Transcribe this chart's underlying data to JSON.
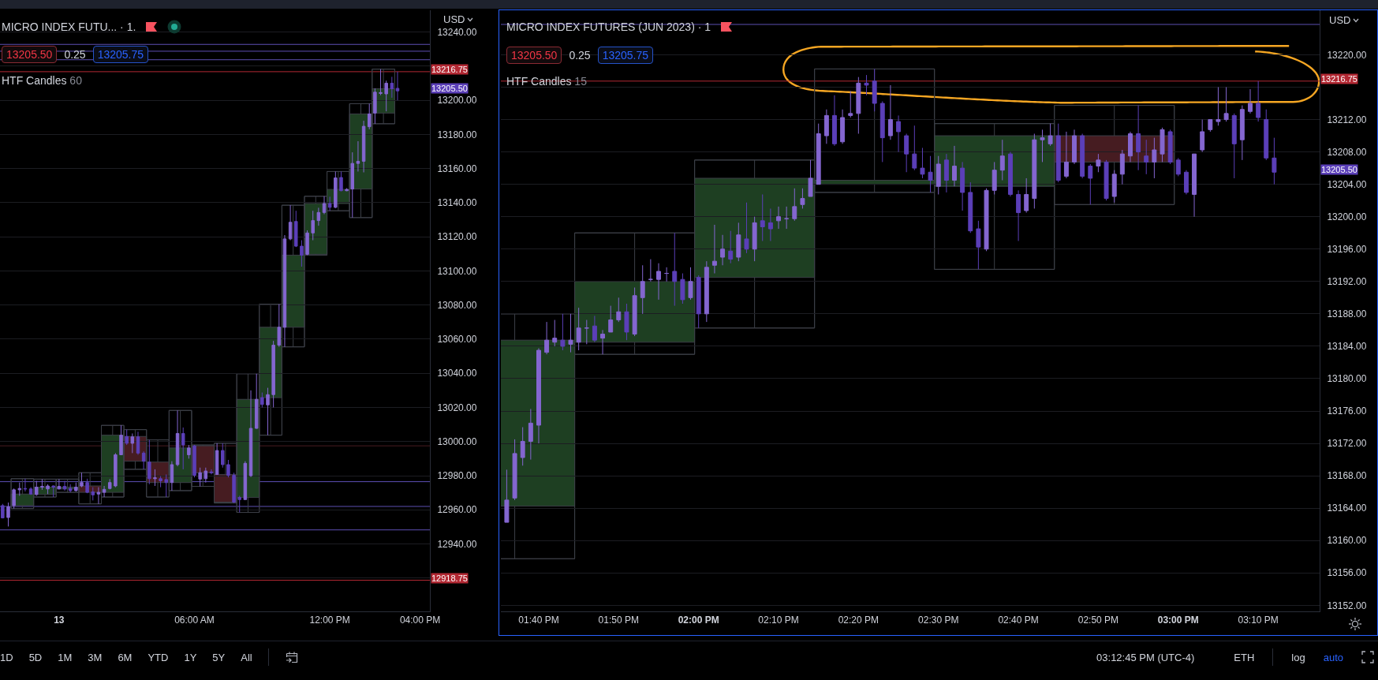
{
  "chart_data": [
    {
      "type": "candlestick",
      "title": "MICRO INDEX FUTU... · 1.",
      "series": [
        {
          "type": "candlestick",
          "colors": [
            "#5b3fb8",
            "#8466d0",
            "#8466d0",
            "#8466d0",
            "#5b3fb8",
            "#5b3fb8",
            "#8466d0",
            "#8466d0",
            "#8466d0",
            "#5b3fb8",
            "#8466d0",
            "#5b3fb8",
            "#5b3fb8",
            "#8466d0",
            "#8466d0",
            "#5b3fb8",
            "#5b3fb8",
            "#8466d0",
            "#8466d0",
            "#8466d0",
            "#8466d0",
            "#8466d0",
            "#5b3fb8",
            "#8466d0",
            "#5b3fb8",
            "#5b3fb8",
            "#5b3fb8",
            "#8466d0",
            "#5b3fb8",
            "#5b3fb8",
            "#8466d0",
            "#8466d0",
            "#5b3fb8",
            "#8466d0",
            "#5b3fb8",
            "#8466d0",
            "#8466d0",
            "#5b3fb8",
            "#8466d0",
            "#5b3fb8",
            "#5b3fb8",
            "#5b3fb8",
            "#5b3fb8",
            "#8466d0",
            "#8466d0",
            "#8466d0",
            "#5b3fb8",
            "#8466d0",
            "#8466d0",
            "#8466d0",
            "#8466d0",
            "#8466d0",
            "#5b3fb8",
            "#5b3fb8",
            "#8466d0",
            "#8466d0",
            "#8466d0",
            "#8466d0",
            "#5b3fb8",
            "#8466d0",
            "#5b3fb8",
            "#8466d0",
            "#8466d0",
            "#8466d0",
            "#8466d0",
            "#8466d0",
            "#8466d0",
            "#8466d0",
            "#8466d0",
            "#5b3fb8",
            "#5b3fb8"
          ],
          "x": [
            "--04-12T21:30",
            "--04-12T21:45",
            "--04-12T22:00",
            "--04-12T22:15",
            "--04-12T22:30",
            "--04-12T22:45",
            "--04-12T23:00",
            "--04-12T23:15",
            "--04-12T23:30",
            "--04-12T23:45",
            "--04-13T00:00",
            "--04-13T00:15",
            "--04-13T00:30",
            "--04-13T00:45",
            "--04-13T01:00",
            "--04-13T01:15",
            "--04-13T01:30",
            "--04-13T01:45",
            "--04-13T02:00",
            "--04-13T02:15",
            "--04-13T02:30",
            "--04-13T02:45",
            "--04-13T03:00",
            "--04-13T03:15",
            "--04-13T03:30",
            "--04-13T03:45",
            "--04-13T04:00",
            "--04-13T04:15",
            "--04-13T04:30",
            "--04-13T04:45",
            "--04-13T05:00",
            "--04-13T05:15",
            "--04-13T05:30",
            "--04-13T05:45",
            "--04-13T06:00",
            "--04-13T06:15",
            "--04-13T06:30",
            "--04-13T06:45",
            "--04-13T07:00",
            "--04-13T07:15",
            "--04-13T07:30",
            "--04-13T07:45",
            "--04-13T08:00",
            "--04-13T08:15",
            "--04-13T08:30",
            "--04-13T08:45",
            "--04-13T09:00",
            "--04-13T09:15",
            "--04-13T09:30",
            "--04-13T09:45",
            "--04-13T10:00",
            "--04-13T10:15",
            "--04-13T10:30",
            "--04-13T10:45",
            "--04-13T11:00",
            "--04-13T11:15",
            "--04-13T11:30",
            "--04-13T11:45",
            "--04-13T12:00",
            "--04-13T12:15",
            "--04-13T12:30",
            "--04-13T12:45",
            "--04-13T13:00",
            "--04-13T13:15",
            "--04-13T13:30",
            "--04-13T13:45",
            "--04-13T14:00",
            "--04-13T14:15",
            "--04-13T14:30",
            "--04-13T14:45",
            "--04-13T15:00"
          ],
          "ohlc": [
            [
              12962.5,
              12963.5,
              12955.0,
              12955.25
            ],
            [
              12955.5,
              12964.25,
              12950.25,
              12961.75
            ],
            [
              12962.5,
              12972.5,
              12960.75,
              12971.75
            ],
            [
              12971.75,
              12976.0,
              12968.25,
              12972.5
            ],
            [
              12972.5,
              12978.25,
              12970.75,
              12972.25
            ],
            [
              12972.25,
              12973.25,
              12968.75,
              12969.25
            ],
            [
              12969.0,
              12977.0,
              12968.25,
              12973.25
            ],
            [
              12973.25,
              12978.0,
              12971.75,
              12973.75
            ],
            [
              12972.25,
              12975.0,
              12969.25,
              12974.0
            ],
            [
              12974.0,
              12974.25,
              12967.5,
              12973.25
            ],
            [
              12972.25,
              12978.0,
              12972.0,
              12973.75
            ],
            [
              12973.75,
              12977.0,
              12971.25,
              12972.25
            ],
            [
              12972.5,
              12975.0,
              12970.25,
              12971.25
            ],
            [
              12971.25,
              12976.0,
              12970.75,
              12973.25
            ],
            [
              12974.0,
              12981.75,
              12973.25,
              12976.0
            ],
            [
              12976.0,
              12978.25,
              12969.75,
              12970.25
            ],
            [
              12970.5,
              12973.25,
              12965.5,
              12968.75
            ],
            [
              12969.25,
              12973.25,
              12963.5,
              12970.25
            ],
            [
              12970.25,
              12974.0,
              12967.5,
              12972.0
            ],
            [
              12972.5,
              12978.0,
              12972.0,
              12976.0
            ],
            [
              12974.0,
              12993.25,
              12973.25,
              12992.25
            ],
            [
              12992.25,
              13009.5,
              12992.25,
              13003.75
            ],
            [
              13003.0,
              13007.0,
              12998.0,
              12999.0
            ],
            [
              12999.0,
              13004.75,
              12993.25,
              13002.75
            ],
            [
              13002.75,
              13005.75,
              12992.25,
              12993.25
            ],
            [
              12993.25,
              12994.25,
              12983.75,
              12988.5
            ],
            [
              12988.0,
              13001.0,
              12975.0,
              12978.25
            ],
            [
              12978.25,
              12983.75,
              12974.0,
              12978.75
            ],
            [
              12978.25,
              12979.75,
              12973.25,
              12977.0
            ],
            [
              12977.75,
              12980.75,
              12967.5,
              12976.0
            ],
            [
              12976.0,
              12988.5,
              12971.25,
              12986.5
            ],
            [
              12986.5,
              13018.25,
              12985.5,
              13004.75
            ],
            [
              13004.75,
              13008.25,
              12983.75,
              12998.0
            ],
            [
              12992.25,
              12998.0,
              12990.0,
              12996.25
            ],
            [
              12997.5,
              12998.0,
              12979.0,
              12980.25
            ],
            [
              12978.0,
              12984.75,
              12973.75,
              12981.75
            ],
            [
              12978.25,
              12984.75,
              12976.0,
              12982.75
            ],
            [
              12982.25,
              12983.75,
              12980.75,
              12981.75
            ],
            [
              12980.75,
              12999.0,
              12980.5,
              12994.75
            ],
            [
              12994.75,
              12999.0,
              12984.75,
              12986.5
            ],
            [
              12986.5,
              12989.25,
              12979.0,
              12980.25
            ],
            [
              12980.25,
              12981.75,
              12964.0,
              12964.5
            ],
            [
              12967.25,
              12968.25,
              12958.5,
              12966.0
            ],
            [
              12966.0,
              12988.5,
              12966.0,
              12987.25
            ],
            [
              12980.0,
              13030.0,
              12979.25,
              13007.75
            ],
            [
              13007.75,
              13039.75,
              13007.5,
              13024.75
            ],
            [
              13025.75,
              13028.75,
              13020.0,
              13021.75
            ],
            [
              13021.5,
              13031.5,
              13003.75,
              13027.5
            ],
            [
              13027.5,
              13059.0,
              13020.0,
              13056.5
            ],
            [
              13056.5,
              13080.5,
              13055.5,
              13067.0
            ],
            [
              13067.0,
              13121.0,
              13055.5,
              13118.75
            ],
            [
              13118.75,
              13138.5,
              13118.0,
              13128.5
            ],
            [
              13129.0,
              13135.25,
              13114.0,
              13114.5
            ],
            [
              13114.5,
              13118.0,
              13102.5,
              13109.25
            ],
            [
              13109.75,
              13123.75,
              13109.25,
              13122.25
            ],
            [
              13122.25,
              13135.25,
              13118.0,
              13129.5
            ],
            [
              13129.5,
              13137.0,
              13126.5,
              13134.25
            ],
            [
              13134.25,
              13143.75,
              13133.25,
              13139.5
            ],
            [
              13139.5,
              13143.5,
              13135.25,
              13137.25
            ],
            [
              13137.25,
              13158.25,
              13136.75,
              13154.5
            ],
            [
              13154.75,
              13158.25,
              13146.75,
              13147.0
            ],
            [
              13147.0,
              13148.5,
              13146.75,
              13147.75
            ],
            [
              13148.0,
              13169.5,
              13131.25,
              13163.0
            ],
            [
              13163.0,
              13176.0,
              13158.25,
              13164.25
            ],
            [
              13164.25,
              13188.0,
              13157.75,
              13184.75
            ],
            [
              13184.5,
              13198.0,
              13183.0,
              13192.0
            ],
            [
              13192.5,
              13207.0,
              13186.25,
              13204.75
            ],
            [
              13204.0,
              13218.25,
              13203.0,
              13204.5
            ],
            [
              13203.75,
              13211.5,
              13193.5,
              13210.0
            ],
            [
              13210.0,
              13213.75,
              13201.5,
              13206.75
            ],
            [
              13207.0,
              13216.75,
              13200.0,
              13205.5
            ]
          ]
        },
        {
          "type": "candlestick",
          "colors": [
            "#1e3f22",
            "#1e3f22",
            "#1e3f22",
            "#461c21",
            "#1e3f22",
            "#461c21",
            "#461c21",
            "#1e3f22",
            "#461c21",
            "#461c21",
            "#1e3f22",
            "#1e3f22",
            "#1e3f22",
            "#1e3f22",
            "#1e3f22",
            "#1e3f22",
            "#1e3f22"
          ],
          "x": [
            "--04-12T22:22:30",
            "--04-12T23:22:30",
            "--04-13T00:22:30",
            "--04-13T01:22:30",
            "--04-13T02:22:30",
            "--04-13T03:22:30",
            "--04-13T04:22:30",
            "--04-13T05:22:30",
            "--04-13T06:22:30",
            "--04-13T07:22:30",
            "--04-13T08:22:30",
            "--04-13T09:22:30",
            "--04-13T10:22:30",
            "--04-13T11:22:30",
            "--04-13T12:22:30",
            "--04-13T13:22:30",
            "--04-13T14:22:30"
          ],
          "ohlc": [
            [
              12962.5,
              12978.25,
              12960.75,
              12969.25
            ],
            [
              12969.0,
              12978.0,
              12967.5,
              12973.25
            ],
            [
              12972.25,
              12978.0,
              12970.25,
              12973.25
            ],
            [
              12974.0,
              12981.75,
              12963.5,
              12970.25
            ],
            [
              12970.25,
              13009.5,
              12967.5,
              13003.75
            ],
            [
              13003.0,
              13007.0,
              12983.75,
              12988.5
            ],
            [
              12988.0,
              13001.0,
              12967.5,
              12976.0
            ],
            [
              12976.0,
              13018.25,
              12971.25,
              12996.25
            ],
            [
              12997.5,
              12998.0,
              12973.75,
              12981.75
            ],
            [
              12980.75,
              12999.0,
              12964.0,
              12964.5
            ],
            [
              12967.25,
              13039.75,
              12958.5,
              13024.75
            ],
            [
              13025.75,
              13080.5,
              13003.75,
              13067.0
            ],
            [
              13067.0,
              13138.5,
              13055.5,
              13109.25
            ],
            [
              13109.75,
              13143.75,
              13109.25,
              13139.5
            ],
            [
              13139.5,
              13158.25,
              13135.25,
              13147.75
            ],
            [
              13148.0,
              13198.0,
              13131.25,
              13192.0
            ],
            [
              13192.5,
              13218.25,
              13186.25,
              13206.75
            ]
          ]
        }
      ],
      "xlim": [
        "--04-12T21:23",
        "--04-13T16:26"
      ],
      "xticks": [
        {
          "value": "--04-13",
          "label": "13"
        },
        {
          "value": "--04-13T06:00",
          "label": "06:00 AM"
        },
        {
          "value": "--04-13T12:00",
          "label": "12:00 PM"
        },
        {
          "value": "--04-13T16:00",
          "label": "04:00 PM"
        }
      ],
      "ylim": [
        12900.5,
        13252.75
      ],
      "yticks": [
        {
          "value": 13240,
          "label": "13240.00"
        },
        {
          "value": 13220,
          "label": null
        },
        {
          "value": 13200,
          "label": "13200.00"
        },
        {
          "value": 13180,
          "label": "13180.00"
        },
        {
          "value": 13160,
          "label": "13160.00"
        },
        {
          "value": 13140,
          "label": "13140.00"
        },
        {
          "value": 13120,
          "label": "13120.00"
        },
        {
          "value": 13100,
          "label": "13100.00"
        },
        {
          "value": 13080,
          "label": "13080.00"
        },
        {
          "value": 13060,
          "label": "13060.00"
        },
        {
          "value": 13040,
          "label": "13040.00"
        },
        {
          "value": 13020,
          "label": "13020.00"
        },
        {
          "value": 13000,
          "label": "13000.00"
        },
        {
          "value": 12980,
          "label": "12980.00"
        },
        {
          "value": 12960,
          "label": "12960.00"
        },
        {
          "value": 12940,
          "label": "12940.00"
        },
        {
          "value": 12920,
          "label": null
        }
      ],
      "grid": "y",
      "ref_lines": [
        {
          "axis": "y",
          "value": 13232.75,
          "color": "#5d4fb3"
        },
        {
          "axis": "y",
          "value": 13228.75,
          "color": "#5d4fb3"
        },
        {
          "axis": "y",
          "value": 13223.75,
          "color": "#5d4fb3"
        },
        {
          "axis": "y",
          "value": 13216.75,
          "label": "13216.75",
          "color": "#b22833"
        },
        {
          "axis": "y",
          "value": 12997.5,
          "color": "#4a1c22"
        },
        {
          "axis": "y",
          "value": 12976.5,
          "color": "#5d4fb3"
        },
        {
          "axis": "y",
          "value": 12962.0,
          "color": "#5d4fb3"
        },
        {
          "axis": "y",
          "value": 12948.25,
          "color": "#5d4fb3"
        },
        {
          "axis": "y",
          "value": 12918.75,
          "label": "12918.75",
          "color": "#b22833"
        }
      ],
      "annotations": [
        "13205.50",
        "0.25",
        "13205.75",
        "HTF Candles",
        "60",
        "USD",
        "13205.50"
      ]
    },
    {
      "type": "candlestick",
      "title": "MICRO INDEX FUTURES (JUN 2023) · 1",
      "series": [
        {
          "type": "candlestick",
          "colors": [
            "#8466d0",
            "#8466d0",
            "#8466d0",
            "#8466d0",
            "#8466d0",
            "#8466d0",
            "#8466d0",
            "#5b3fb8",
            "#8466d0",
            "#8466d0",
            "#8466d0",
            "#5b3fb8",
            "#8466d0",
            "#8466d0",
            "#8466d0",
            "#5b3fb8",
            "#8466d0",
            "#8466d0",
            "#8466d0",
            "#8466d0",
            "#8466d0",
            "#5b3fb8",
            "#5b3fb8",
            "#8466d0",
            "#5b3fb8",
            "#8466d0",
            "#8466d0",
            "#8466d0",
            "#5b3fb8",
            "#8466d0",
            "#5b3fb8",
            "#8466d0",
            "#5b3fb8",
            "#5b3fb8",
            "#8466d0",
            "#8466d0",
            "#8466d0",
            "#8466d0",
            "#8466d0",
            "#8466d0",
            "#8466d0",
            "#5b3fb8",
            "#8466d0",
            "#8466d0",
            "#8466d0",
            "#5b3fb8",
            "#5b3fb8",
            "#5b3fb8",
            "#8466d0",
            "#5b3fb8",
            "#5b3fb8",
            "#5b3fb8",
            "#5b3fb8",
            "#5b3fb8",
            "#8466d0",
            "#5b3fb8",
            "#8466d0",
            "#5b3fb8",
            "#5b3fb8",
            "#5b3fb8",
            "#8466d0",
            "#8466d0",
            "#8466d0",
            "#5b3fb8",
            "#5b3fb8",
            "#8466d0",
            "#8466d0",
            "#8466d0",
            "#8466d0",
            "#5b3fb8",
            "#8466d0",
            "#8466d0",
            "#5b3fb8",
            "#5b3fb8",
            "#8466d0",
            "#5b3fb8",
            "#8466d0",
            "#8466d0",
            "#8466d0",
            "#5b3fb8",
            "#5b3fb8",
            "#8466d0",
            "#8466d0",
            "#5b3fb8",
            "#5b3fb8",
            "#5b3fb8",
            "#8466d0",
            "#8466d0",
            "#8466d0",
            "#8466d0",
            "#8466d0",
            "#5b3fb8",
            "#8466d0",
            "#8466d0",
            "#5b3fb8",
            "#5b3fb8",
            "#5b3fb8"
          ],
          "x": [
            13.6,
            13.6167,
            13.6333,
            13.65,
            13.6667,
            13.6833,
            13.7,
            13.7167,
            13.7333,
            13.75,
            13.7667,
            13.7833,
            13.8,
            13.8167,
            13.8333,
            13.85,
            13.8667,
            13.8833,
            13.9,
            13.9167,
            13.9333,
            13.95,
            13.9667,
            13.9833,
            14,
            14.0167,
            14.0333,
            14.05,
            14.0667,
            14.0833,
            14.1,
            14.1167,
            14.1333,
            14.15,
            14.1667,
            14.1833,
            14.2,
            14.2167,
            14.2333,
            14.25,
            14.2667,
            14.2833,
            14.3,
            14.3167,
            14.3333,
            14.35,
            14.3667,
            14.3833,
            14.4,
            14.4167,
            14.4333,
            14.45,
            14.4667,
            14.4833,
            14.5,
            14.5167,
            14.5333,
            14.55,
            14.5667,
            14.5833,
            14.6,
            14.6167,
            14.6333,
            14.65,
            14.6667,
            14.6833,
            14.7,
            14.7167,
            14.7333,
            14.75,
            14.7667,
            14.7833,
            14.8,
            14.8167,
            14.8333,
            14.85,
            14.8667,
            14.8833,
            14.9,
            14.9167,
            14.9333,
            14.95,
            14.9667,
            14.9833,
            15,
            15.0167,
            15.0333,
            15.05,
            15.0667,
            15.0833,
            15.1,
            15.1167,
            15.1333,
            15.15,
            15.1667,
            15.1833,
            15.2
          ],
          "ohlc": [
            [
              13162.25,
              13168.75,
              13162.25,
              13165.0
            ],
            [
              13165.25,
              13172.5,
              13165.0,
              13170.75
            ],
            [
              13170.25,
              13174.0,
              13169.25,
              13172.25
            ],
            [
              13172.25,
              13176.25,
              13170.0,
              13174.5
            ],
            [
              13174.25,
              13183.75,
              13172.0,
              13183.5
            ],
            [
              13183.25,
              13187.0,
              13183.0,
              13184.75
            ],
            [
              13184.5,
              13187.25,
              13184.0,
              13185.0
            ],
            [
              13184.75,
              13188.0,
              13183.5,
              13184.0
            ],
            [
              13184.25,
              13188.0,
              13183.25,
              13184.75
            ],
            [
              13184.5,
              13188.75,
              13183.5,
              13186.25
            ],
            [
              13186.25,
              13187.25,
              13184.25,
              13186.25
            ],
            [
              13186.5,
              13187.75,
              13184.5,
              13184.75
            ],
            [
              13185.0,
              13186.0,
              13183.0,
              13185.5
            ],
            [
              13185.75,
              13189.0,
              13185.75,
              13187.25
            ],
            [
              13187.25,
              13190.0,
              13187.0,
              13188.25
            ],
            [
              13188.25,
              13189.25,
              13184.75,
              13185.75
            ],
            [
              13185.5,
              13191.25,
              13185.25,
              13190.25
            ],
            [
              13190.0,
              13194.0,
              13188.0,
              13192.0
            ],
            [
              13192.25,
              13194.75,
              13192.0,
              13192.25
            ],
            [
              13192.25,
              13194.25,
              13189.75,
              13193.25
            ],
            [
              13193.0,
              13193.75,
              13192.0,
              13193.0
            ],
            [
              13193.25,
              13198.0,
              13189.0,
              13192.0
            ],
            [
              13192.25,
              13193.0,
              13189.25,
              13189.75
            ],
            [
              13190.0,
              13193.75,
              13189.75,
              13192.0
            ],
            [
              13192.5,
              13192.75,
              13186.25,
              13188.0
            ],
            [
              13188.0,
              13194.5,
              13187.0,
              13193.75
            ],
            [
              13194.0,
              13199.0,
              13193.0,
              13194.5
            ],
            [
              13195.0,
              13197.75,
              13194.0,
              13196.0
            ],
            [
              13195.75,
              13198.25,
              13194.25,
              13194.75
            ],
            [
              13195.0,
              13199.25,
              13194.5,
              13197.75
            ],
            [
              13197.25,
              13201.75,
              13195.5,
              13196.0
            ],
            [
              13196.0,
              13200.0,
              13194.5,
              13199.25
            ],
            [
              13199.5,
              13202.75,
              13197.0,
              13198.75
            ],
            [
              13199.25,
              13201.0,
              13197.0,
              13198.5
            ],
            [
              13199.5,
              13201.25,
              13198.5,
              13200.0
            ],
            [
              13199.75,
              13201.25,
              13198.5,
              13199.75
            ],
            [
              13199.75,
              13203.5,
              13199.5,
              13201.25
            ],
            [
              13201.5,
              13203.5,
              13201.0,
              13202.25
            ],
            [
              13202.5,
              13207.0,
              13202.5,
              13204.75
            ],
            [
              13204.0,
              13211.5,
              13204.0,
              13210.25
            ],
            [
              13210.0,
              13213.25,
              13209.0,
              13212.5
            ],
            [
              13212.5,
              13215.0,
              13208.75,
              13209.0
            ],
            [
              13209.25,
              13213.25,
              13209.0,
              13212.25
            ],
            [
              13212.5,
              13215.5,
              13212.25,
              13212.75
            ],
            [
              13212.75,
              13217.25,
              13210.25,
              13216.5
            ],
            [
              13216.5,
              13217.5,
              13215.0,
              13216.25
            ],
            [
              13216.75,
              13218.25,
              13213.0,
              13214.0
            ],
            [
              13214.0,
              13214.25,
              13206.75,
              13209.75
            ],
            [
              13210.0,
              13216.25,
              13209.5,
              13212.0
            ],
            [
              13211.75,
              13212.5,
              13208.0,
              13210.5
            ],
            [
              13210.0,
              13210.25,
              13205.5,
              13207.75
            ],
            [
              13207.75,
              13211.25,
              13205.75,
              13206.0
            ],
            [
              13206.0,
              13208.5,
              13204.75,
              13205.25
            ],
            [
              13205.5,
              13207.5,
              13203.0,
              13204.5
            ],
            [
              13203.75,
              13207.5,
              13202.75,
              13206.5
            ],
            [
              13207.0,
              13207.75,
              13203.0,
              13204.5
            ],
            [
              13204.5,
              13208.75,
              13203.75,
              13206.25
            ],
            [
              13206.0,
              13206.75,
              13200.75,
              13203.0
            ],
            [
              13203.0,
              13204.25,
              13198.0,
              13198.25
            ],
            [
              13198.5,
              13199.5,
              13193.5,
              13196.25
            ],
            [
              13196.0,
              13203.5,
              13195.75,
              13203.25
            ],
            [
              13203.25,
              13206.75,
              13202.75,
              13205.75
            ],
            [
              13205.75,
              13209.5,
              13204.5,
              13207.5
            ],
            [
              13207.75,
              13208.0,
              13202.5,
              13202.75
            ],
            [
              13202.75,
              13203.25,
              13197.0,
              13200.5
            ],
            [
              13200.75,
              13204.75,
              13200.5,
              13202.75
            ],
            [
              13202.25,
              13210.25,
              13201.0,
              13209.5
            ],
            [
              13209.5,
              13210.75,
              13206.75,
              13209.75
            ],
            [
              13209.0,
              13211.5,
              13208.75,
              13210.0
            ],
            [
              13210.0,
              13211.5,
              13204.25,
              13204.5
            ],
            [
              13205.0,
              13210.5,
              13204.75,
              13206.75
            ],
            [
              13206.75,
              13210.75,
              13206.5,
              13210.0
            ],
            [
              13210.0,
              13210.25,
              13204.75,
              13205.0
            ],
            [
              13206.25,
              13206.5,
              13201.5,
              13204.75
            ],
            [
              13206.25,
              13207.75,
              13205.5,
              13207.0
            ],
            [
              13206.75,
              13207.0,
              13202.0,
              13202.25
            ],
            [
              13202.5,
              13205.75,
              13201.75,
              13205.25
            ],
            [
              13205.25,
              13208.25,
              13204.0,
              13207.75
            ],
            [
              13207.5,
              13210.5,
              13206.75,
              13210.25
            ],
            [
              13210.25,
              13213.75,
              13205.75,
              13208.0
            ],
            [
              13207.5,
              13209.5,
              13205.25,
              13206.75
            ],
            [
              13206.75,
              13209.75,
              13204.75,
              13208.25
            ],
            [
              13207.75,
              13211.0,
              13206.75,
              13210.75
            ],
            [
              13210.5,
              13210.75,
              13206.5,
              13206.75
            ],
            [
              13207.0,
              13207.25,
              13205.0,
              13205.25
            ],
            [
              13205.5,
              13205.75,
              13202.75,
              13203.0
            ],
            [
              13202.75,
              13207.75,
              13200.0,
              13207.75
            ],
            [
              13208.25,
              13212.0,
              13208.0,
              13210.5
            ],
            [
              13210.75,
              13212.0,
              13210.5,
              13212.0
            ],
            [
              13211.75,
              13216.0,
              13211.25,
              13212.0
            ],
            [
              13212.0,
              13216.0,
              13211.75,
              13212.75
            ],
            [
              13212.5,
              13212.75,
              13204.75,
              13209.0
            ],
            [
              13209.5,
              13213.75,
              13207.0,
              13213.25
            ],
            [
              13213.0,
              13215.75,
              13212.75,
              13214.0
            ],
            [
              13214.0,
              13216.75,
              13211.75,
              13212.25
            ],
            [
              13212.0,
              13213.25,
              13207.0,
              13207.25
            ],
            [
              13207.25,
              13209.75,
              13204.0,
              13205.5
            ]
          ]
        },
        {
          "type": "candlestick",
          "colors": [
            "#1e3f22",
            "#1e3f22",
            "#1e3f22",
            "#1e3f22",
            "#1e3f22",
            "#461c21"
          ],
          "x": [
            13.6167,
            13.8667,
            14.1167,
            14.3667,
            14.6167,
            14.8667
          ],
          "ohlc": [
            [
              13164.25,
              13188.0,
              13157.75,
              13184.75
            ],
            [
              13184.5,
              13198.0,
              13183.0,
              13192.0
            ],
            [
              13192.5,
              13207.0,
              13186.25,
              13204.75
            ],
            [
              13204.0,
              13218.25,
              13203.0,
              13204.5
            ],
            [
              13203.75,
              13211.5,
              13193.5,
              13210.0
            ],
            [
              13210.0,
              13213.75,
              13201.5,
              13206.75
            ]
          ]
        }
      ],
      "xlim": [
        13.5878,
        15.2947
      ],
      "xticks": [
        {
          "value": 13.6667,
          "label": "01:40 PM"
        },
        {
          "value": 13.8333,
          "label": "01:50 PM"
        },
        {
          "value": 14,
          "label": "02:00 PM"
        },
        {
          "value": 14.1667,
          "label": "02:10 PM"
        },
        {
          "value": 14.3333,
          "label": "02:20 PM"
        },
        {
          "value": 14.5,
          "label": "02:30 PM"
        },
        {
          "value": 14.6667,
          "label": "02:40 PM"
        },
        {
          "value": 14.8333,
          "label": "02:50 PM"
        },
        {
          "value": 15,
          "label": "03:00 PM"
        },
        {
          "value": 15.1667,
          "label": "03:10 PM"
        }
      ],
      "ylim": [
        13151.25,
        13225.5
      ],
      "yticks": [
        {
          "value": 13220,
          "label": "13220.00"
        },
        {
          "value": 13216,
          "label": null
        },
        {
          "value": 13212,
          "label": "13212.00"
        },
        {
          "value": 13208,
          "label": "13208.00"
        },
        {
          "value": 13204,
          "label": "13204.00"
        },
        {
          "value": 13200,
          "label": "13200.00"
        },
        {
          "value": 13196,
          "label": "13196.00"
        },
        {
          "value": 13192,
          "label": "13192.00"
        },
        {
          "value": 13188,
          "label": "13188.00"
        },
        {
          "value": 13184,
          "label": "13184.00"
        },
        {
          "value": 13180,
          "label": "13180.00"
        },
        {
          "value": 13176,
          "label": "13176.00"
        },
        {
          "value": 13172,
          "label": "13172.00"
        },
        {
          "value": 13168,
          "label": "13168.00"
        },
        {
          "value": 13164,
          "label": "13164.00"
        },
        {
          "value": 13160,
          "label": "13160.00"
        },
        {
          "value": 13156,
          "label": "13156.00"
        },
        {
          "value": 13152,
          "label": "13152.00"
        }
      ],
      "grid": "y",
      "ref_lines": [
        {
          "axis": "y",
          "value": 13223.75,
          "color": "#5d4fb3"
        },
        {
          "axis": "y",
          "value": 13216.75,
          "label": "13216.75",
          "color": "#b22833"
        }
      ],
      "annotations": [
        "13205.50",
        "0.25",
        "13205.75",
        "HTF Candles",
        "15",
        "USD",
        "13205.50"
      ]
    },
    {
      "type": "other",
      "annotations": [
        "1D",
        "5D",
        "1M",
        "3M",
        "6M",
        "YTD",
        "1Y",
        "5Y",
        "All",
        "03:12:45 PM (UTC-4)",
        "ETH",
        "log",
        "auto"
      ]
    }
  ]
}
